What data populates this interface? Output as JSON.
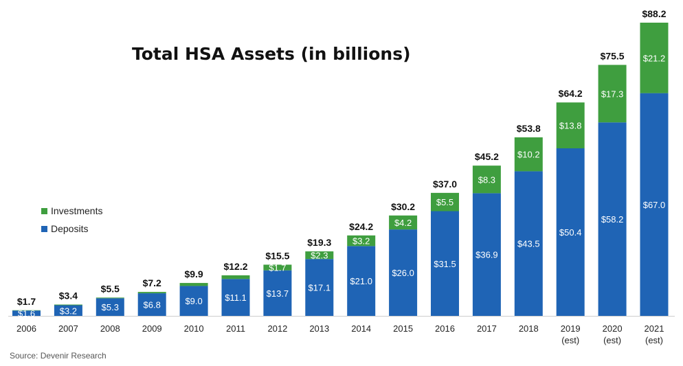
{
  "chart_data": {
    "type": "bar",
    "stacked": true,
    "title": "Total HSA Assets (in billions)",
    "source": "Source: Devenir Research",
    "categories": [
      [
        "2006"
      ],
      [
        "2007"
      ],
      [
        "2008"
      ],
      [
        "2009"
      ],
      [
        "2010"
      ],
      [
        "2011"
      ],
      [
        "2012"
      ],
      [
        "2013"
      ],
      [
        "2014"
      ],
      [
        "2015"
      ],
      [
        "2016"
      ],
      [
        "2017"
      ],
      [
        "2018"
      ],
      [
        "2019",
        "(est)"
      ],
      [
        "2020",
        "(est)"
      ],
      [
        "2021",
        "(est)"
      ]
    ],
    "series": [
      {
        "name": "Deposits",
        "color": "#1f64b5",
        "values": [
          1.6,
          3.2,
          5.3,
          6.8,
          9.0,
          11.1,
          13.7,
          17.1,
          21.0,
          26.0,
          31.5,
          36.9,
          43.5,
          50.4,
          58.2,
          67.0
        ],
        "labels": [
          "$1.6",
          "$3.2",
          "$5.3",
          "$6.8",
          "$9.0",
          "$11.1",
          "$13.7",
          "$17.1",
          "$21.0",
          "$26.0",
          "$31.5",
          "$36.9",
          "$43.5",
          "$50.4",
          "$58.2",
          "$67.0"
        ]
      },
      {
        "name": "Investments",
        "color": "#3f9e3f",
        "values": [
          0.1,
          0.2,
          0.2,
          0.4,
          0.9,
          1.1,
          1.7,
          2.3,
          3.2,
          4.2,
          5.5,
          8.3,
          10.2,
          13.8,
          17.3,
          21.2
        ],
        "labels": [
          "",
          "",
          "",
          "",
          "",
          "",
          "$1.7",
          "$2.3",
          "$3.2",
          "$4.2",
          "$5.5",
          "$8.3",
          "$10.2",
          "$13.8",
          "$17.3",
          "$21.2"
        ]
      }
    ],
    "totals": [
      "$1.7",
      "$3.4",
      "$5.5",
      "$7.2",
      "$9.9",
      "$12.2",
      "$15.5",
      "$19.3",
      "$24.2",
      "$30.2",
      "$37.0",
      "$45.2",
      "$53.8",
      "$64.2",
      "$75.5",
      "$88.2"
    ],
    "legend": {
      "position": "left",
      "entries": [
        {
          "name": "Investments",
          "color": "#3f9e3f"
        },
        {
          "name": "Deposits",
          "color": "#1f64b5"
        }
      ]
    },
    "ylim": [
      0,
      88.2
    ],
    "grid": false,
    "baseline_color": "#cccccc"
  }
}
